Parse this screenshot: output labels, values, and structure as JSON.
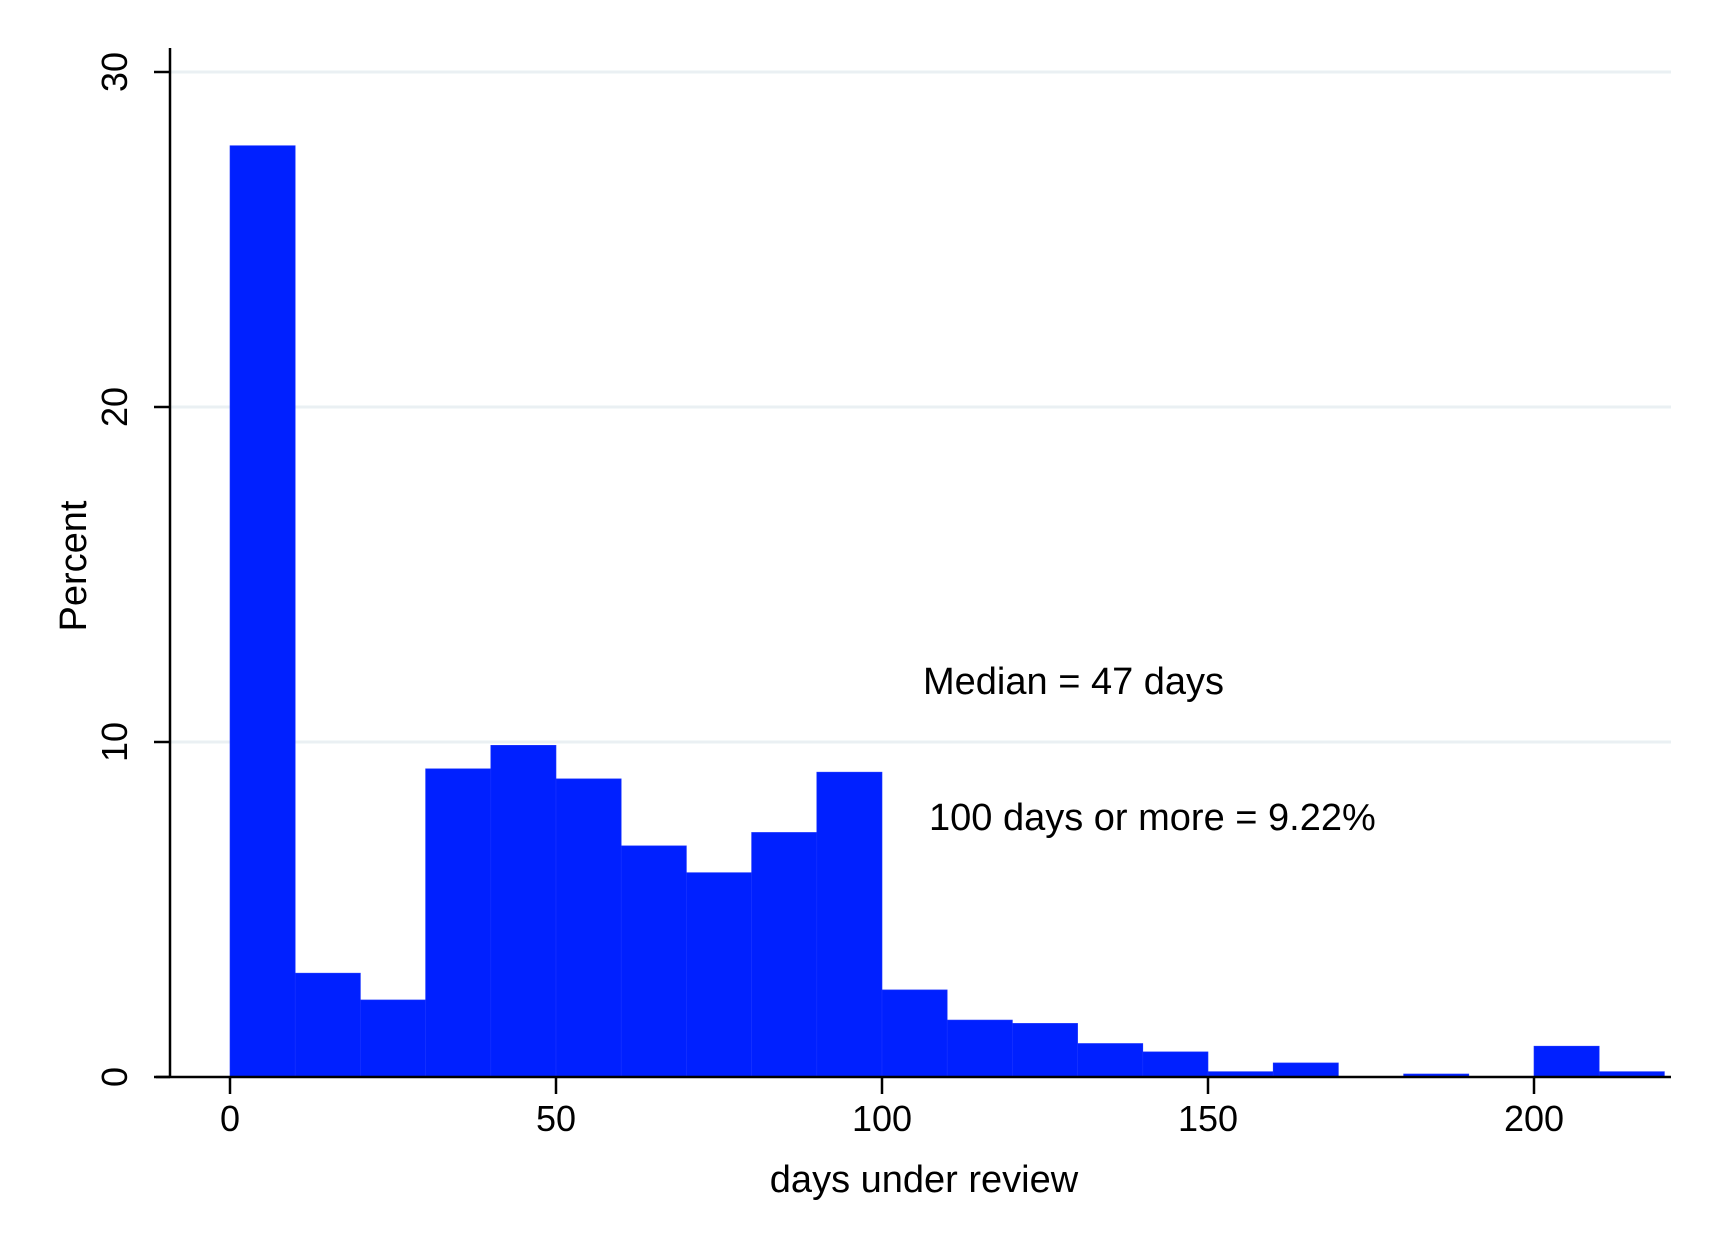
{
  "colors": {
    "bar": "#0020ff",
    "grid": "#eaf0f3",
    "axis": "#000000",
    "background": "#ffffff"
  },
  "chart_data": {
    "type": "bar",
    "subtype": "histogram",
    "title": "",
    "xlabel": "days under review",
    "ylabel": "Percent",
    "xlim": [
      -9,
      225
    ],
    "ylim": [
      0,
      30
    ],
    "bin_width": 10,
    "grid": true,
    "legend": null,
    "x_ticks": [
      0,
      50,
      100,
      150,
      200
    ],
    "y_ticks": [
      0,
      10,
      20,
      30
    ],
    "bins": [
      {
        "start": 0,
        "end": 10,
        "value": 27.8
      },
      {
        "start": 10,
        "end": 20,
        "value": 3.1
      },
      {
        "start": 20,
        "end": 30,
        "value": 2.3
      },
      {
        "start": 30,
        "end": 40,
        "value": 9.2
      },
      {
        "start": 40,
        "end": 50,
        "value": 9.9
      },
      {
        "start": 50,
        "end": 60,
        "value": 8.9
      },
      {
        "start": 60,
        "end": 70,
        "value": 6.9
      },
      {
        "start": 70,
        "end": 80,
        "value": 6.1
      },
      {
        "start": 80,
        "end": 90,
        "value": 7.3
      },
      {
        "start": 90,
        "end": 100,
        "value": 9.1
      },
      {
        "start": 100,
        "end": 110,
        "value": 2.6
      },
      {
        "start": 110,
        "end": 120,
        "value": 1.7
      },
      {
        "start": 120,
        "end": 130,
        "value": 1.6
      },
      {
        "start": 130,
        "end": 140,
        "value": 1.0
      },
      {
        "start": 140,
        "end": 150,
        "value": 0.75
      },
      {
        "start": 150,
        "end": 160,
        "value": 0.16
      },
      {
        "start": 160,
        "end": 170,
        "value": 0.42
      },
      {
        "start": 170,
        "end": 180,
        "value": 0
      },
      {
        "start": 180,
        "end": 190,
        "value": 0.09
      },
      {
        "start": 190,
        "end": 200,
        "value": 0
      },
      {
        "start": 200,
        "end": 210,
        "value": 0.92
      },
      {
        "start": 210,
        "end": 220,
        "value": 0.16
      }
    ],
    "annotations": [
      {
        "text": "Median = 47 days"
      },
      {
        "text": "100 days or more = 9.22%"
      }
    ]
  }
}
